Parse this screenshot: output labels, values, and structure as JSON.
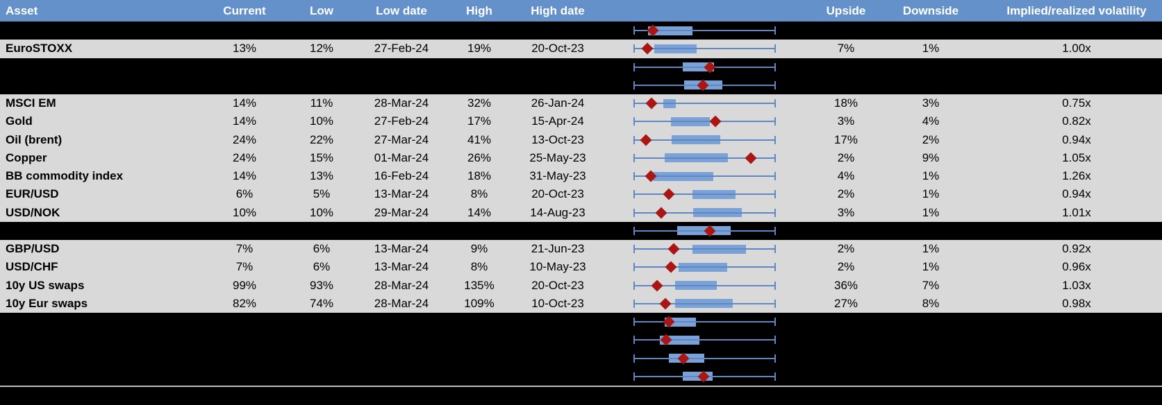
{
  "header": {
    "columns": [
      "Asset",
      "Current",
      "Low",
      "Low date",
      "High",
      "High date",
      "Upside",
      "Downside",
      "Implied/realized volatility"
    ]
  },
  "colors": {
    "header_bg": "#6591cb",
    "header_text": "#ffffff",
    "row_bg": "#d9d9d9",
    "hidden_row_bg": "#000000",
    "box_fill": "#7ba2d7",
    "whisker_line": "#5f88c2",
    "marker_diamond": "#a81713",
    "divider": "#bdbdbd"
  },
  "chart_legend": {
    "type": "box-whisker sparkline per row",
    "description": "Normalized 12m volatility range: whisker = min..max, blue box = interquartile range, red diamond = current level (positions are fractions 0..1 of whisker span)"
  },
  "rows": [
    {
      "type": "chart",
      "chart": {
        "box_start": 0.102,
        "box_end": 0.415,
        "marker": 0.137
      }
    },
    {
      "type": "data",
      "asset": "EuroSTOXX",
      "current": "13%",
      "low": "12%",
      "low_date": "27-Feb-24",
      "high": "19%",
      "high_date": "20-Oct-23",
      "upside": "7%",
      "downside": "1%",
      "impl_real": "1.00x",
      "chart": {
        "box_start": 0.146,
        "box_end": 0.444,
        "marker": 0.098
      }
    },
    {
      "type": "chart",
      "chart": {
        "box_start": 0.346,
        "box_end": 0.566,
        "marker": 0.537
      }
    },
    {
      "type": "chart",
      "chart": {
        "box_start": 0.356,
        "box_end": 0.624,
        "marker": 0.488
      }
    },
    {
      "type": "data",
      "asset": "MSCI EM",
      "current": "14%",
      "low": "11%",
      "low_date": "28-Mar-24",
      "high": "32%",
      "high_date": "26-Jan-24",
      "upside": "18%",
      "downside": "3%",
      "impl_real": "0.75x",
      "chart": {
        "box_start": 0.21,
        "box_end": 0.298,
        "marker": 0.127
      }
    },
    {
      "type": "data",
      "asset": "Gold",
      "current": "14%",
      "low": "10%",
      "low_date": "27-Feb-24",
      "high": "17%",
      "high_date": "15-Apr-24",
      "upside": "3%",
      "downside": "4%",
      "impl_real": "0.82x",
      "chart": {
        "box_start": 0.263,
        "box_end": 0.537,
        "marker": 0.576
      }
    },
    {
      "type": "data",
      "asset": "Oil (brent)",
      "current": "24%",
      "low": "22%",
      "low_date": "27-Mar-24",
      "high": "41%",
      "high_date": "13-Oct-23",
      "upside": "17%",
      "downside": "2%",
      "impl_real": "0.94x",
      "chart": {
        "box_start": 0.268,
        "box_end": 0.61,
        "marker": 0.088
      }
    },
    {
      "type": "data",
      "asset": "Copper",
      "current": "24%",
      "low": "15%",
      "low_date": "01-Mar-24",
      "high": "26%",
      "high_date": "25-May-23",
      "upside": "2%",
      "downside": "9%",
      "impl_real": "1.05x",
      "chart": {
        "box_start": 0.22,
        "box_end": 0.663,
        "marker": 0.824
      }
    },
    {
      "type": "data",
      "asset": "BB commodity index",
      "current": "14%",
      "low": "13%",
      "low_date": "16-Feb-24",
      "high": "18%",
      "high_date": "31-May-23",
      "upside": "4%",
      "downside": "1%",
      "impl_real": "1.26x",
      "chart": {
        "box_start": 0.137,
        "box_end": 0.561,
        "marker": 0.122
      }
    },
    {
      "type": "data",
      "asset": "EUR/USD",
      "current": "6%",
      "low": "5%",
      "low_date": "13-Mar-24",
      "high": "8%",
      "high_date": "20-Oct-23",
      "upside": "2%",
      "downside": "1%",
      "impl_real": "0.94x",
      "chart": {
        "box_start": 0.415,
        "box_end": 0.717,
        "marker": 0.249
      }
    },
    {
      "type": "data",
      "asset": "USD/NOK",
      "current": "10%",
      "low": "10%",
      "low_date": "29-Mar-24",
      "high": "14%",
      "high_date": "14-Aug-23",
      "upside": "3%",
      "downside": "1%",
      "impl_real": "1.01x",
      "chart": {
        "box_start": 0.42,
        "box_end": 0.761,
        "marker": 0.195
      }
    },
    {
      "type": "chart",
      "chart": {
        "box_start": 0.307,
        "box_end": 0.683,
        "marker": 0.537
      }
    },
    {
      "type": "data",
      "asset": "GBP/USD",
      "current": "7%",
      "low": "6%",
      "low_date": "13-Mar-24",
      "high": "9%",
      "high_date": "21-Jun-23",
      "upside": "2%",
      "downside": "1%",
      "impl_real": "0.92x",
      "chart": {
        "box_start": 0.415,
        "box_end": 0.79,
        "marker": 0.283
      }
    },
    {
      "type": "data",
      "asset": "USD/CHF",
      "current": "7%",
      "low": "6%",
      "low_date": "13-Mar-24",
      "high": "8%",
      "high_date": "10-May-23",
      "upside": "2%",
      "downside": "1%",
      "impl_real": "0.96x",
      "chart": {
        "box_start": 0.317,
        "box_end": 0.659,
        "marker": 0.263
      }
    },
    {
      "type": "data",
      "asset": "10y US swaps",
      "current": "99%",
      "low": "93%",
      "low_date": "28-Mar-24",
      "high": "135%",
      "high_date": "20-Oct-23",
      "upside": "36%",
      "downside": "7%",
      "impl_real": "1.03x",
      "chart": {
        "box_start": 0.293,
        "box_end": 0.585,
        "marker": 0.166
      }
    },
    {
      "type": "data",
      "asset": "10y Eur swaps",
      "current": "82%",
      "low": "74%",
      "low_date": "28-Mar-24",
      "high": "109%",
      "high_date": "10-Oct-23",
      "upside": "27%",
      "downside": "8%",
      "impl_real": "0.98x",
      "chart": {
        "box_start": 0.293,
        "box_end": 0.698,
        "marker": 0.224
      }
    },
    {
      "type": "chart",
      "chart": {
        "box_start": 0.22,
        "box_end": 0.439,
        "marker": 0.249
      }
    },
    {
      "type": "chart",
      "chart": {
        "box_start": 0.185,
        "box_end": 0.463,
        "marker": 0.229
      }
    },
    {
      "type": "chart",
      "chart": {
        "box_start": 0.249,
        "box_end": 0.498,
        "marker": 0.351
      }
    },
    {
      "type": "chart",
      "chart": {
        "box_start": 0.346,
        "box_end": 0.556,
        "marker": 0.493
      }
    }
  ]
}
